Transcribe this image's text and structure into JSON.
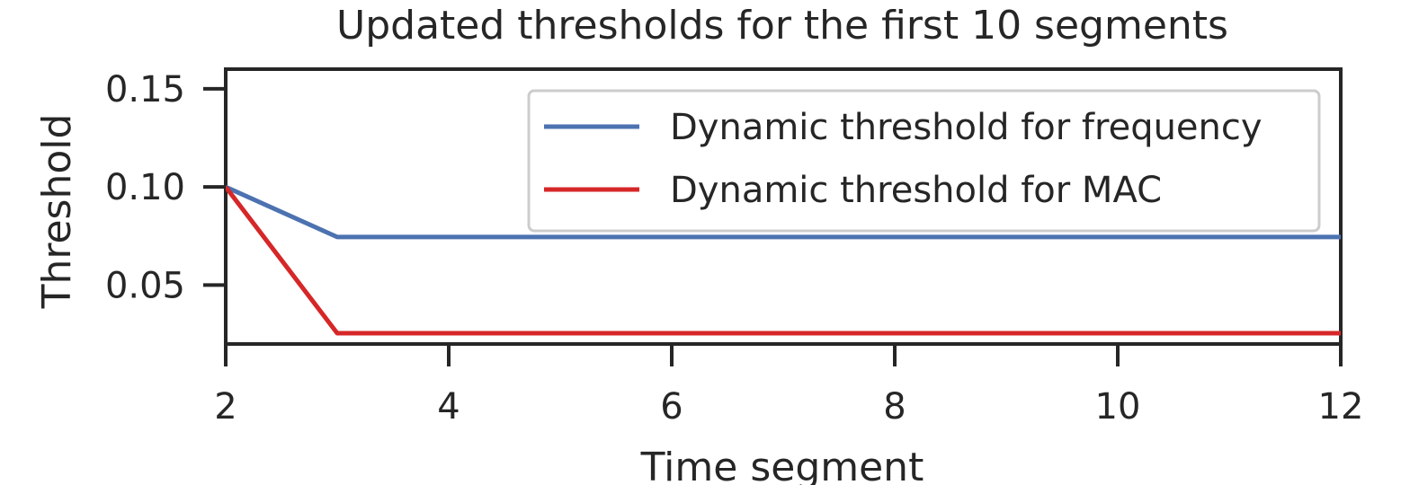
{
  "chart_data": {
    "type": "line",
    "title": "Updated thresholds for the first 10 segments",
    "xlabel": "Time segment",
    "ylabel": "Threshold",
    "xlim": [
      2,
      12
    ],
    "ylim": [
      0.02,
      0.16
    ],
    "xticks": [
      2,
      4,
      6,
      8,
      10,
      12
    ],
    "yticks": [
      0.05,
      0.1,
      0.15
    ],
    "xtick_labels": [
      "2",
      "4",
      "6",
      "8",
      "10",
      "12"
    ],
    "ytick_labels": [
      "0.05",
      "0.10",
      "0.15"
    ],
    "grid": false,
    "legend_position": "top-right",
    "series": [
      {
        "name": "Dynamic threshold for frequency",
        "color": "#4c72b0",
        "x": [
          2,
          3,
          4,
          5,
          6,
          7,
          8,
          9,
          10,
          11,
          12
        ],
        "values": [
          0.1,
          0.0745,
          0.0745,
          0.0745,
          0.0745,
          0.0745,
          0.0745,
          0.0745,
          0.0745,
          0.0745,
          0.0745
        ]
      },
      {
        "name": "Dynamic threshold for MAC",
        "color": "#d62728",
        "x": [
          2,
          3,
          4,
          5,
          6,
          7,
          8,
          9,
          10,
          11,
          12
        ],
        "values": [
          0.1,
          0.0255,
          0.0255,
          0.0255,
          0.0255,
          0.0255,
          0.0255,
          0.0255,
          0.0255,
          0.0255,
          0.0255
        ]
      }
    ]
  }
}
